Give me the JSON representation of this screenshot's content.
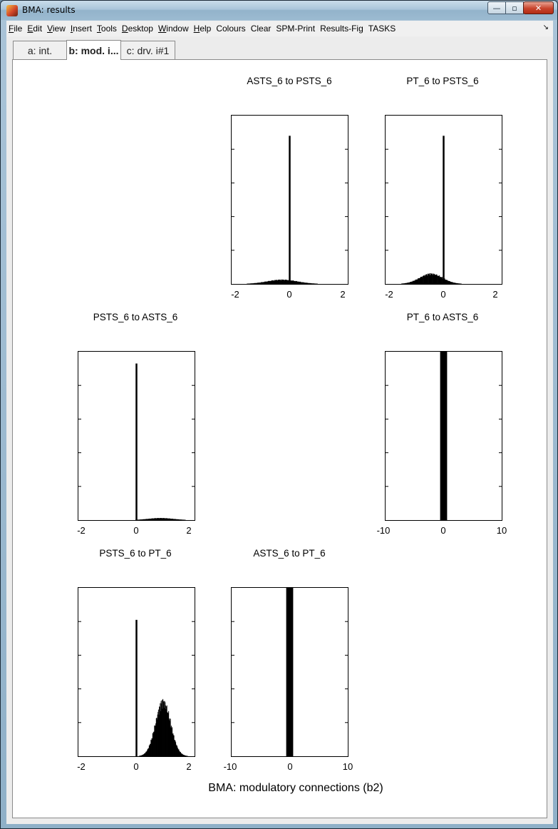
{
  "window": {
    "title": "BMA: results",
    "controls": {
      "minimize": "—",
      "maximize": "▫",
      "close": "✕"
    }
  },
  "menubar": {
    "items": [
      "File",
      "Edit",
      "View",
      "Insert",
      "Tools",
      "Desktop",
      "Window",
      "Help",
      "Colours",
      "Clear",
      "SPM-Print",
      "Results-Fig",
      "TASKS"
    ],
    "overflow_icon": "chevron-icon"
  },
  "tabs": [
    {
      "label": "a: int.",
      "active": false
    },
    {
      "label": "b: mod. i...",
      "active": true
    },
    {
      "label": "c: drv. i#1",
      "active": false
    }
  ],
  "figure": {
    "title": "BMA: modulatory connections (b2)"
  },
  "chart_data": [
    {
      "type": "bar",
      "title": "ASTS_6 to PSTS_6",
      "xlim": [
        -2.3,
        2.3
      ],
      "xticks": [
        "-2",
        "0",
        "2"
      ],
      "description_values": {
        "spike_at": 0,
        "spike_height": 0.88,
        "spread_center": -0.3,
        "spread_sd": 0.6,
        "spread_height": 0.025
      }
    },
    {
      "type": "bar",
      "title": "PT_6 to PSTS_6",
      "xlim": [
        -2.3,
        2.3
      ],
      "xticks": [
        "-2",
        "0",
        "2"
      ],
      "description_values": {
        "spike_at": 0,
        "spike_height": 0.88,
        "spread_center": -0.5,
        "spread_sd": 0.45,
        "spread_height": 0.06
      }
    },
    {
      "type": "bar",
      "title": "PSTS_6 to ASTS_6",
      "xlim": [
        -2.3,
        2.3
      ],
      "xticks": [
        "-2",
        "0",
        "2"
      ],
      "description_values": {
        "spike_at": 0,
        "spike_height": 0.93,
        "spread_center": 0.95,
        "spread_sd": 0.5,
        "spread_height": 0.012
      }
    },
    {
      "type": "bar",
      "title": "PT_6 to ASTS_6",
      "xlim": [
        -10,
        10
      ],
      "xticks": [
        "-10",
        "0",
        "10"
      ],
      "description_values": {
        "spike_at": 0,
        "spike_height": 1.0,
        "spike_width": 1.2
      }
    },
    {
      "type": "bar",
      "title": "PSTS_6 to PT_6",
      "xlim": [
        -2.3,
        2.3
      ],
      "xticks": [
        "-2",
        "0",
        "2"
      ],
      "description_values": {
        "spike_at": 0,
        "spike_height": 0.81,
        "spread_center": 1.05,
        "spread_sd": 0.3,
        "spread_height": 0.32
      }
    },
    {
      "type": "bar",
      "title": "ASTS_6 to PT_6",
      "xlim": [
        -10,
        10
      ],
      "xticks": [
        "-10",
        "0",
        "10"
      ],
      "description_values": {
        "spike_at": 0,
        "spike_height": 1.0,
        "spike_width": 1.2
      }
    }
  ]
}
